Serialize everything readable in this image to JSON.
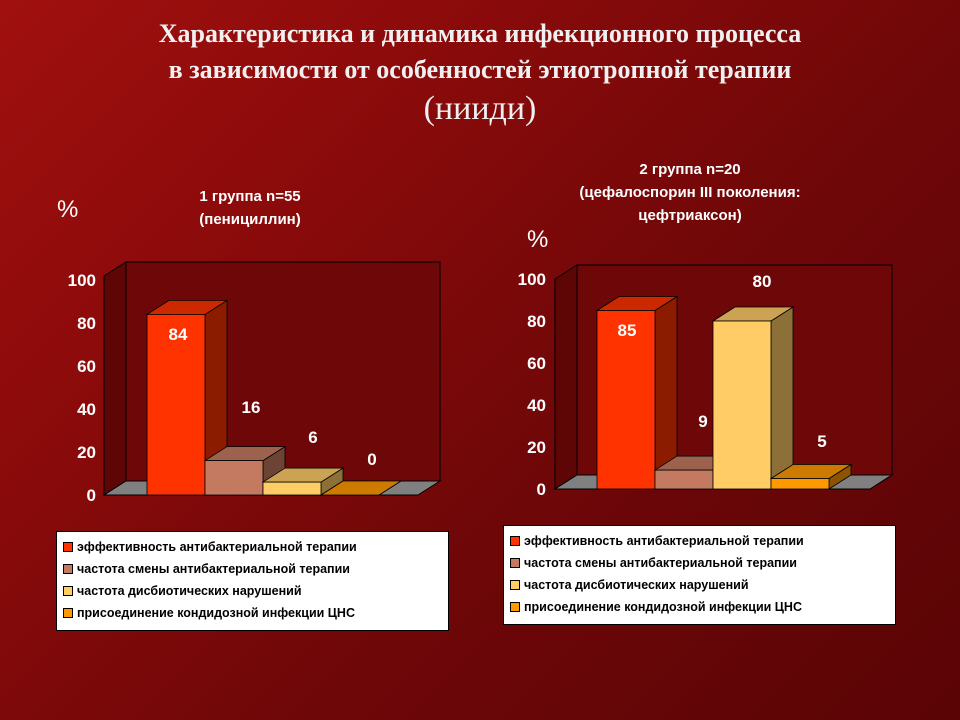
{
  "title": {
    "line1": "Характеристика и динамика инфекционного процесса",
    "line2": "в зависимости от особенностей  этиотропной  терапии",
    "line3": "(нииди)"
  },
  "legend_items": [
    "эффективность антибактериальной терапии",
    "частота смены антибактериальной терапии",
    "частота дисбиотических нарушений",
    "присоединение кондидозной инфекции ЦНС"
  ],
  "colors": {
    "background": "#7a0a0a",
    "series": [
      "#ff3300",
      "#c47a60",
      "#ffcc66",
      "#ff9900"
    ],
    "floor": "#808080",
    "wall": "#6e0707"
  },
  "chart_data": [
    {
      "type": "bar",
      "title_lines": [
        "1 группа n=55",
        "(пенициллин)"
      ],
      "unit_label": "%",
      "categories": [
        "1 группа n=55"
      ],
      "series": [
        {
          "name": "эффективность антибактериальной терапии",
          "values": [
            84
          ],
          "label": "84"
        },
        {
          "name": "частота смены антибактериальной терапии",
          "values": [
            16
          ],
          "label": "16"
        },
        {
          "name": "частота дисбиотических нарушений",
          "values": [
            6
          ],
          "label": "6"
        },
        {
          "name": "присоединение кондидозной инфекции ЦНС",
          "values": [
            0
          ],
          "label": "0"
        }
      ],
      "y_ticks": [
        "0",
        "20",
        "40",
        "60",
        "80",
        "100"
      ],
      "ylim": [
        0,
        100
      ],
      "legend_position": "bottom",
      "three_d": true
    },
    {
      "type": "bar",
      "title_lines": [
        "2 группа n=20",
        "(цефалоспорин III поколения:",
        "цефтриаксон)"
      ],
      "unit_label": "%",
      "categories": [
        "2 группа n=20"
      ],
      "series": [
        {
          "name": "эффективность антибактериальной терапии",
          "values": [
            85
          ],
          "label": "85"
        },
        {
          "name": "частота смены антибактериальной терапии",
          "values": [
            9
          ],
          "label": "9"
        },
        {
          "name": "частота дисбиотических нарушений",
          "values": [
            80
          ],
          "label": "80"
        },
        {
          "name": "присоединение кондидозной инфекции ЦНС",
          "values": [
            5
          ],
          "label": "5"
        }
      ],
      "y_ticks": [
        "0",
        "20",
        "40",
        "60",
        "80",
        "100"
      ],
      "ylim": [
        0,
        100
      ],
      "legend_position": "bottom",
      "three_d": true
    }
  ]
}
